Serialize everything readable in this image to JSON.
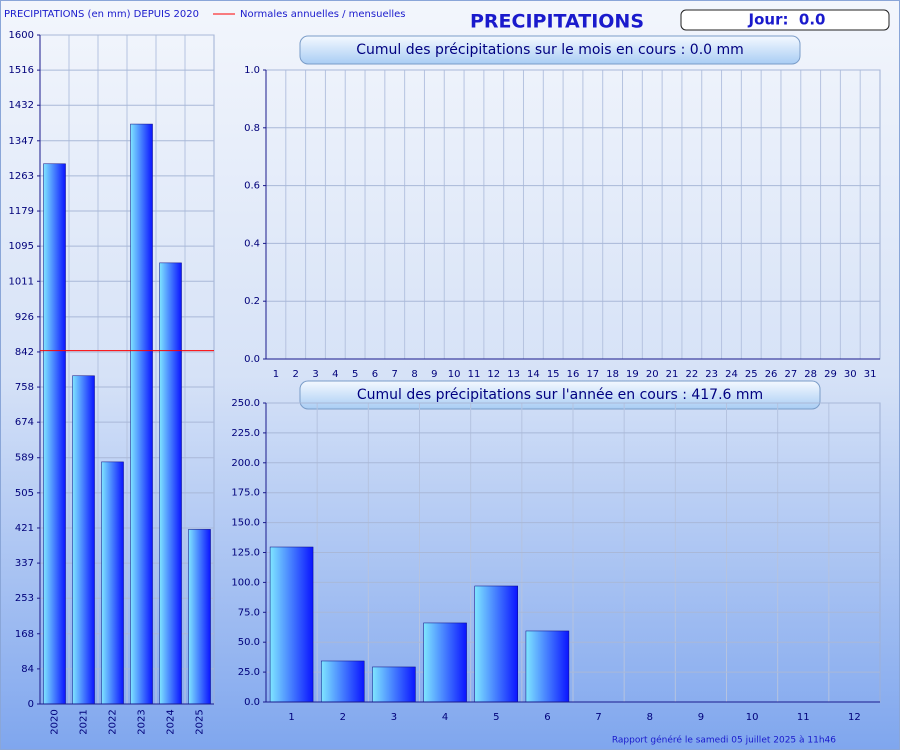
{
  "header": {
    "title": "PRECIPITATIONS",
    "day_box": "Jour:  0.0"
  },
  "footer": "Rapport généré le samedi 05 juillet 2025 à 11h46",
  "chart_data": [
    {
      "type": "bar",
      "title": "PRECIPITATIONS (en mm) DEPUIS 2020",
      "categories": [
        "2020",
        "2021",
        "2022",
        "2023",
        "2024",
        "2025"
      ],
      "values": [
        1292,
        785,
        579,
        1387,
        1055,
        417.6
      ],
      "color": "#0a14ff",
      "ylim": [
        0,
        1600
      ],
      "yticks": [
        0,
        84,
        168,
        253,
        337,
        421,
        505,
        589,
        674,
        758,
        842,
        926,
        1011,
        1095,
        1179,
        1263,
        1347,
        1432,
        1516,
        1600
      ],
      "grid": true,
      "reference_line": {
        "name": "Normales annuelles / mensuelles",
        "value": 845,
        "color": "#ff0000"
      }
    },
    {
      "type": "bar",
      "title": "Cumul des précipitations sur le mois en cours : 0.0 mm",
      "categories": [
        "1",
        "2",
        "3",
        "4",
        "5",
        "6",
        "7",
        "8",
        "9",
        "10",
        "11",
        "12",
        "13",
        "14",
        "15",
        "16",
        "17",
        "18",
        "19",
        "20",
        "21",
        "22",
        "23",
        "24",
        "25",
        "26",
        "27",
        "28",
        "29",
        "30",
        "31"
      ],
      "values": [
        0,
        0,
        0,
        0,
        0,
        null,
        null,
        null,
        null,
        null,
        null,
        null,
        null,
        null,
        null,
        null,
        null,
        null,
        null,
        null,
        null,
        null,
        null,
        null,
        null,
        null,
        null,
        null,
        null,
        null,
        null
      ],
      "color": "#0a14ff",
      "ylim": [
        0,
        1
      ],
      "yticks": [
        {
          "value": 0,
          "label": "0.0"
        },
        {
          "value": 0.2,
          "label": "0.2"
        },
        {
          "value": 0.4,
          "label": "0.4"
        },
        {
          "value": 0.6,
          "label": "0.6"
        },
        {
          "value": 0.8,
          "label": "0.8"
        },
        {
          "value": 1,
          "label": "1.0"
        }
      ],
      "grid": true
    },
    {
      "type": "bar",
      "title": "Cumul des précipitations sur l'année en cours : 417.6 mm",
      "categories": [
        "1",
        "2",
        "3",
        "4",
        "5",
        "6",
        "7",
        "8",
        "9",
        "10",
        "11",
        "12"
      ],
      "values": [
        129.6,
        34.3,
        29.3,
        66.1,
        97,
        59.4,
        null,
        null,
        null,
        null,
        null,
        null
      ],
      "color": "#0a14ff",
      "ylim": [
        0,
        250
      ],
      "yticks": [
        {
          "value": 0,
          "label": "0.0"
        },
        {
          "value": 25,
          "label": "25.0"
        },
        {
          "value": 50,
          "label": "50.0"
        },
        {
          "value": 75,
          "label": "75.0"
        },
        {
          "value": 100,
          "label": "100.0"
        },
        {
          "value": 125,
          "label": "125.0"
        },
        {
          "value": 150,
          "label": "150.0"
        },
        {
          "value": 175,
          "label": "175.0"
        },
        {
          "value": 200,
          "label": "200.0"
        },
        {
          "value": 225,
          "label": "225.0"
        },
        {
          "value": 250,
          "label": "250.0"
        }
      ],
      "grid": true
    }
  ]
}
